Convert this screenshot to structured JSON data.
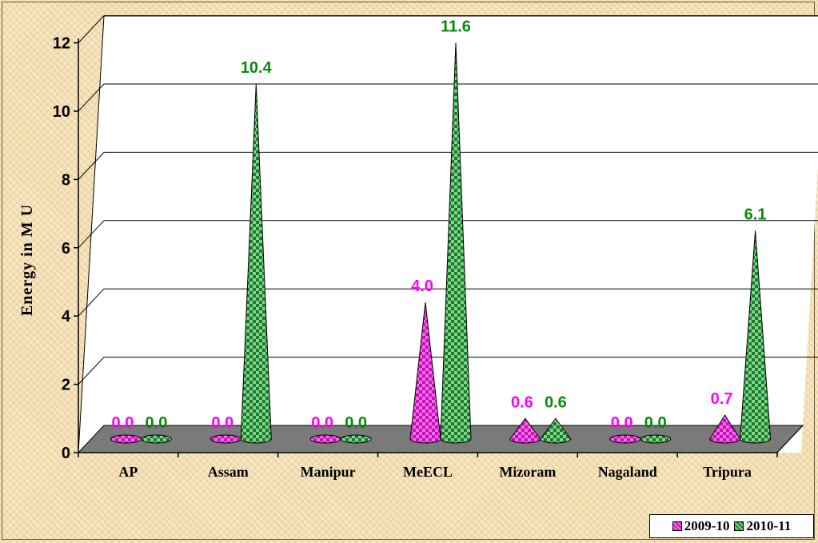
{
  "chart_data": {
    "type": "bar",
    "subtype": "3d-cone",
    "ylabel": "Energy in M U",
    "ylim": [
      0,
      12
    ],
    "yticks": [
      "0",
      "2",
      "4",
      "6",
      "8",
      "10",
      "12"
    ],
    "categories": [
      "AP",
      "Assam",
      "Manipur",
      "MeECL",
      "Mizoram",
      "Nagaland",
      "Tripura"
    ],
    "series": [
      {
        "name": "2009-10",
        "values": [
          0.0,
          0.0,
          0.0,
          4.0,
          0.6,
          0.0,
          0.7
        ],
        "labels": [
          "0.0",
          "0.0",
          "0.0",
          "4.0",
          "0.6",
          "0.0",
          "0.7"
        ],
        "color": "#e21bd1",
        "label_color": "#ff00ff"
      },
      {
        "name": "2010-11",
        "values": [
          0.0,
          10.4,
          0.0,
          11.6,
          0.6,
          0.0,
          6.1
        ],
        "labels": [
          "0.0",
          "10.4",
          "0.0",
          "11.6",
          "0.6",
          "0.0",
          "6.1"
        ],
        "color": "#2e8b3c",
        "label_color": "#0a8a0a"
      }
    ],
    "grid": true,
    "legend_position": "bottom-right"
  }
}
